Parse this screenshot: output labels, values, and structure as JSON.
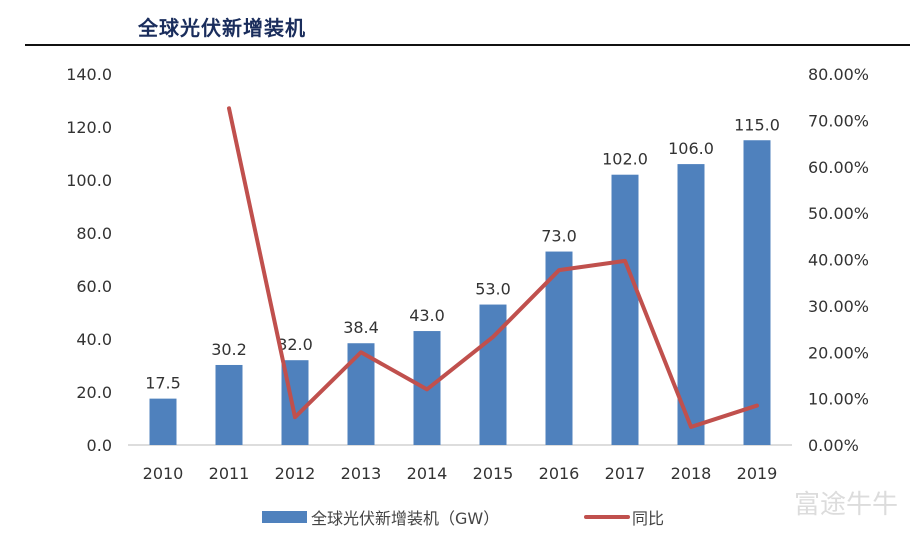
{
  "title": "全球光伏新增装机",
  "watermark": "富途牛牛",
  "chart_data": {
    "type": "bar+line",
    "categories": [
      "2010",
      "2011",
      "2012",
      "2013",
      "2014",
      "2015",
      "2016",
      "2017",
      "2018",
      "2019"
    ],
    "series": [
      {
        "name": "全球光伏新增装机（GW）",
        "type": "bar",
        "axis": "left",
        "color": "#4f81bd",
        "values": [
          17.5,
          30.2,
          32.0,
          38.4,
          43.0,
          53.0,
          73.0,
          102.0,
          106.0,
          115.0
        ],
        "labels": [
          "17.5",
          "30.2",
          "32.0",
          "38.4",
          "43.0",
          "53.0",
          "73.0",
          "102.0",
          "106.0",
          "115.0"
        ]
      },
      {
        "name": "同比",
        "type": "line",
        "axis": "right",
        "color": "#c0504d",
        "values": [
          null,
          72.6,
          6.0,
          20.0,
          12.0,
          23.3,
          37.7,
          39.7,
          3.9,
          8.5
        ]
      }
    ],
    "y_left": {
      "range": [
        0,
        140
      ],
      "ticks": [
        "0.0",
        "20.0",
        "40.0",
        "60.0",
        "80.0",
        "100.0",
        "120.0",
        "140.0"
      ]
    },
    "y_right": {
      "range": [
        0,
        80
      ],
      "unit": "%",
      "ticks": [
        "0.00%",
        "10.00%",
        "20.00%",
        "30.00%",
        "40.00%",
        "50.00%",
        "60.00%",
        "70.00%",
        "80.00%"
      ]
    },
    "grid": false,
    "legend": "bottom"
  }
}
